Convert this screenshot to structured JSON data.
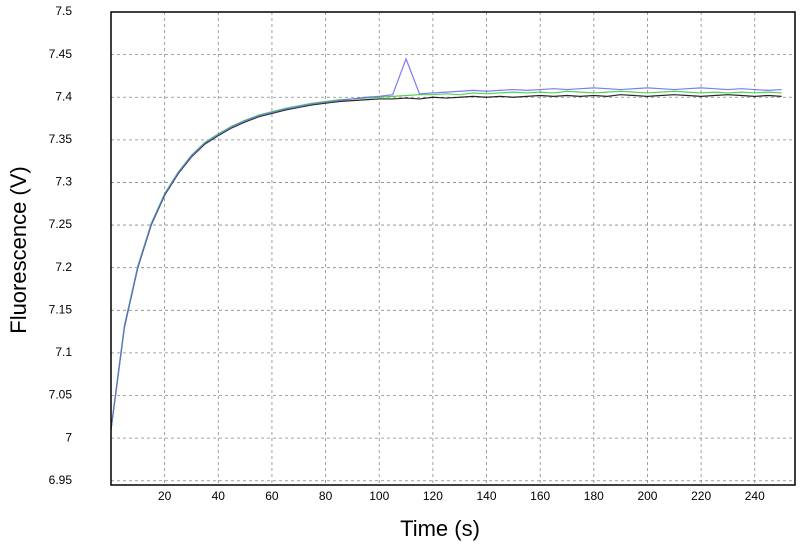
{
  "chart_data": {
    "type": "line",
    "x_label": "Time (s)",
    "y_label": "Fluorescence (V)",
    "x": [
      0,
      5,
      10,
      15,
      20,
      25,
      30,
      35,
      40,
      45,
      50,
      55,
      60,
      65,
      70,
      75,
      80,
      85,
      90,
      95,
      100,
      105,
      110,
      115,
      120,
      125,
      130,
      135,
      140,
      145,
      150,
      155,
      160,
      165,
      170,
      175,
      180,
      185,
      190,
      195,
      200,
      205,
      210,
      215,
      220,
      225,
      230,
      235,
      240,
      245,
      250
    ],
    "series": [
      {
        "color": "#000000",
        "values": [
          7.01,
          7.13,
          7.2,
          7.25,
          7.285,
          7.31,
          7.33,
          7.345,
          7.355,
          7.364,
          7.371,
          7.377,
          7.381,
          7.385,
          7.388,
          7.391,
          7.393,
          7.395,
          7.396,
          7.397,
          7.398,
          7.398,
          7.399,
          7.398,
          7.4,
          7.399,
          7.4,
          7.401,
          7.4,
          7.401,
          7.4,
          7.401,
          7.402,
          7.401,
          7.402,
          7.401,
          7.402,
          7.401,
          7.403,
          7.402,
          7.401,
          7.402,
          7.403,
          7.402,
          7.401,
          7.402,
          7.403,
          7.402,
          7.401,
          7.402,
          7.401
        ]
      },
      {
        "color": "#33cc33",
        "values": [
          7.01,
          7.132,
          7.202,
          7.252,
          7.287,
          7.312,
          7.332,
          7.347,
          7.357,
          7.366,
          7.373,
          7.379,
          7.383,
          7.387,
          7.39,
          7.393,
          7.395,
          7.397,
          7.398,
          7.399,
          7.4,
          7.401,
          7.402,
          7.403,
          7.403,
          7.404,
          7.403,
          7.405,
          7.404,
          7.405,
          7.406,
          7.405,
          7.406,
          7.405,
          7.407,
          7.406,
          7.405,
          7.406,
          7.407,
          7.406,
          7.405,
          7.406,
          7.407,
          7.406,
          7.405,
          7.406,
          7.405,
          7.406,
          7.405,
          7.406,
          7.405
        ]
      },
      {
        "color": "#6666ee",
        "values": [
          7.01,
          7.131,
          7.201,
          7.251,
          7.286,
          7.311,
          7.331,
          7.346,
          7.356,
          7.365,
          7.372,
          7.378,
          7.382,
          7.386,
          7.389,
          7.392,
          7.394,
          7.396,
          7.398,
          7.4,
          7.401,
          7.403,
          7.445,
          7.404,
          7.405,
          7.406,
          7.407,
          7.408,
          7.407,
          7.408,
          7.409,
          7.408,
          7.409,
          7.41,
          7.409,
          7.41,
          7.411,
          7.41,
          7.409,
          7.41,
          7.411,
          7.41,
          7.409,
          7.41,
          7.411,
          7.41,
          7.409,
          7.41,
          7.409,
          7.408,
          7.409
        ]
      }
    ],
    "xlim": [
      0,
      255
    ],
    "ylim": [
      6.945,
      7.5
    ],
    "xticks": [
      20,
      40,
      60,
      80,
      100,
      120,
      140,
      160,
      180,
      200,
      220,
      240
    ],
    "yticks": [
      6.95,
      7,
      7.05,
      7.1,
      7.15,
      7.2,
      7.25,
      7.3,
      7.35,
      7.4,
      7.45,
      7.5
    ],
    "grid": true
  }
}
